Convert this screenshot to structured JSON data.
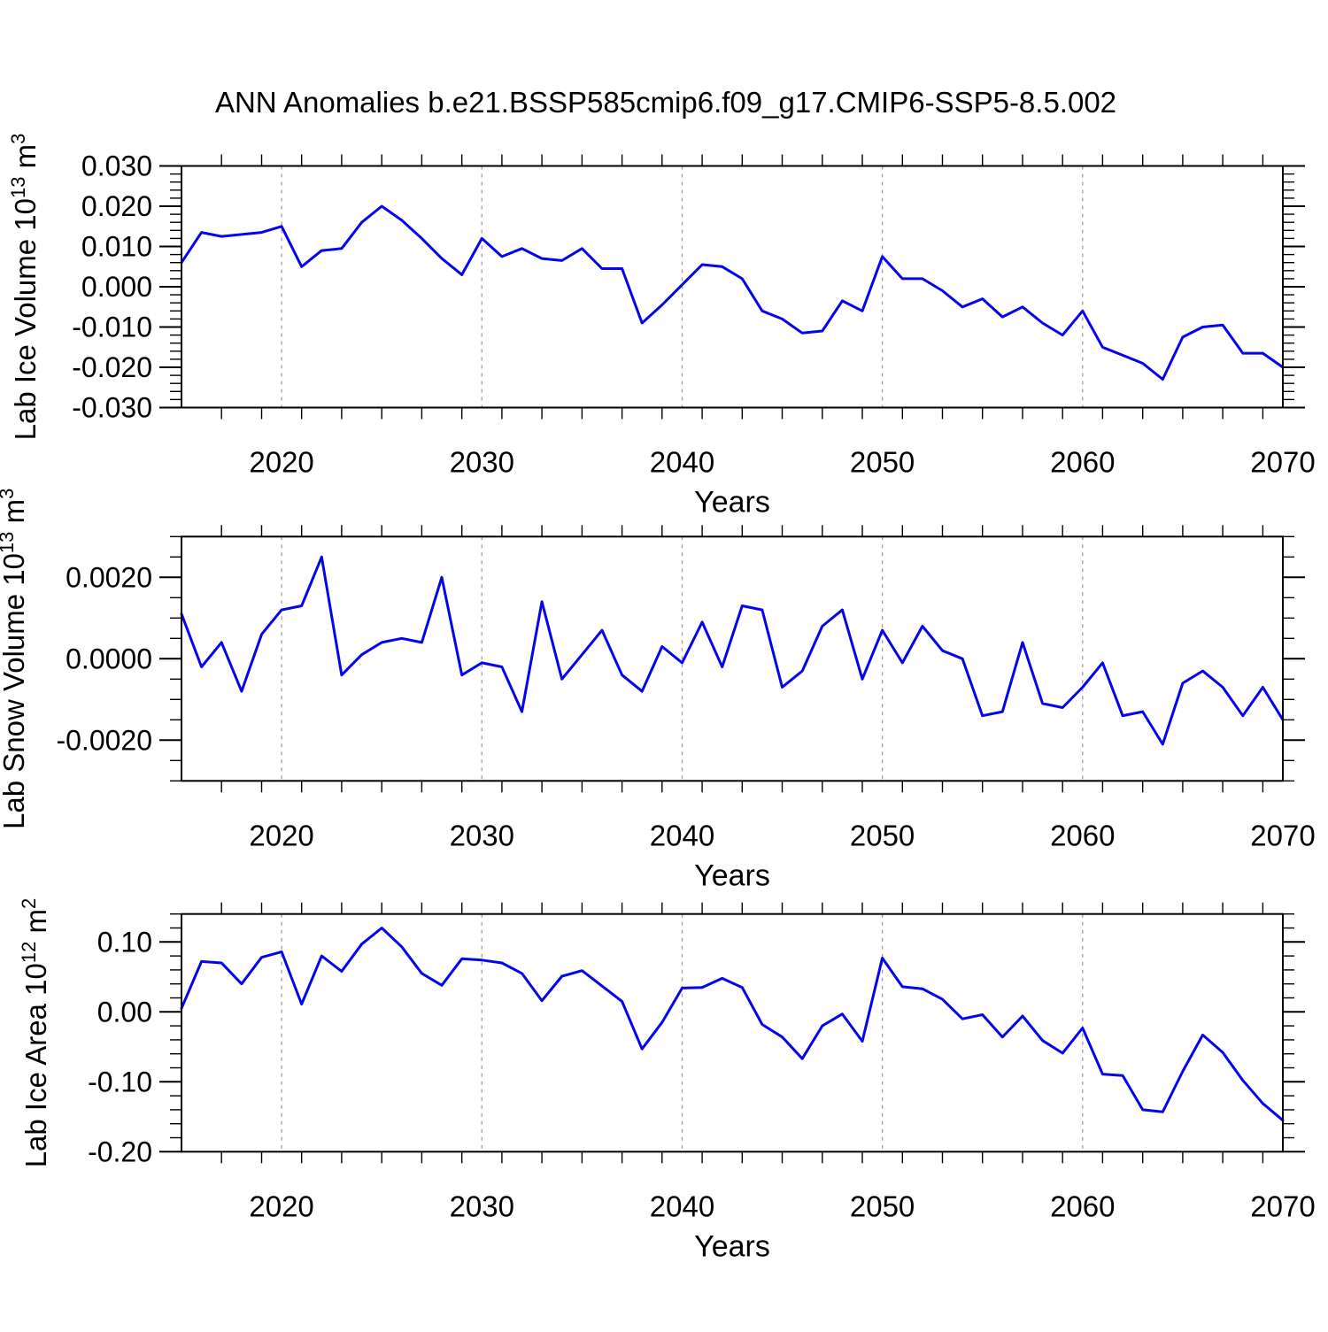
{
  "title": "ANN Anomalies b.e21.BSSP585cmip6.f09_g17.CMIP6-SSP5-8.5.002",
  "style": {
    "line_color": "#0404ee",
    "axis_color": "#000000",
    "grid_color": "#a0a0a0",
    "background": "#ffffff"
  },
  "x_axis": {
    "label": "Years",
    "range": [
      2015,
      2070
    ],
    "major_ticks": [
      2020,
      2030,
      2040,
      2050,
      2060,
      2070
    ],
    "minor_step": 2,
    "gridlines": [
      2020,
      2030,
      2040,
      2050,
      2060
    ]
  },
  "years": [
    2015,
    2016,
    2017,
    2018,
    2019,
    2020,
    2021,
    2022,
    2023,
    2024,
    2025,
    2026,
    2027,
    2028,
    2029,
    2030,
    2031,
    2032,
    2033,
    2034,
    2035,
    2036,
    2037,
    2038,
    2039,
    2040,
    2041,
    2042,
    2043,
    2044,
    2045,
    2046,
    2047,
    2048,
    2049,
    2050,
    2051,
    2052,
    2053,
    2054,
    2055,
    2056,
    2057,
    2058,
    2059,
    2060,
    2061,
    2062,
    2063,
    2064,
    2065,
    2066,
    2067,
    2068,
    2069,
    2070
  ],
  "chart_data": [
    {
      "type": "line",
      "name": "lab-ice-volume",
      "ylabel": "Lab Ice Volume 10^13 m^3",
      "ylabel_parts": {
        "pre": "Lab Ice Volume 10",
        "sup1": "13",
        "mid": " m",
        "sup2": "3"
      },
      "ylim": [
        -0.03,
        0.03
      ],
      "y_major": [
        0.03,
        0.02,
        0.01,
        0,
        -0.01,
        -0.02,
        -0.03
      ],
      "y_minor_step": 0.002,
      "y_decimals": 3,
      "values": [
        0.006,
        0.0135,
        0.0125,
        0.013,
        0.0135,
        0.015,
        0.005,
        0.009,
        0.0095,
        0.016,
        0.02,
        0.0165,
        0.012,
        0.007,
        0.003,
        0.012,
        0.0075,
        0.0095,
        0.007,
        0.0065,
        0.0095,
        0.0045,
        0.0045,
        -0.009,
        -0.0045,
        0.0005,
        0.0055,
        0.005,
        0.002,
        -0.006,
        -0.008,
        -0.0115,
        -0.011,
        -0.0035,
        -0.006,
        0.0075,
        0.002,
        0.002,
        -0.001,
        -0.005,
        -0.003,
        -0.0075,
        -0.005,
        -0.009,
        -0.012,
        -0.006,
        -0.015,
        -0.017,
        -0.019,
        -0.023,
        -0.0125,
        -0.01,
        -0.0095,
        -0.0165,
        -0.0165,
        -0.02
      ]
    },
    {
      "type": "line",
      "name": "lab-snow-volume",
      "ylabel": "Lab Snow Volume 10^13 m^3",
      "ylabel_parts": {
        "pre": "Lab Snow Volume 10",
        "sup1": "13",
        "mid": " m",
        "sup2": "3"
      },
      "ylim": [
        -0.003,
        0.003
      ],
      "y_major": [
        0.002,
        0,
        -0.002
      ],
      "y_minor_step": 0.0005,
      "y_decimals": 4,
      "values": [
        0.0011,
        -0.0002,
        0.0004,
        -0.0008,
        0.0006,
        0.0012,
        0.0013,
        0.0025,
        -0.0004,
        0.0001,
        0.0004,
        0.0005,
        0.0004,
        0.002,
        -0.0004,
        -0.0001,
        -0.0002,
        -0.0013,
        0.0014,
        -0.0005,
        0.0001,
        0.0007,
        -0.0004,
        -0.0008,
        0.0003,
        -0.0001,
        0.0009,
        -0.0002,
        0.0013,
        0.0012,
        -0.0007,
        -0.0003,
        0.0008,
        0.0012,
        -0.0005,
        0.0007,
        -0.0001,
        0.0008,
        0.0002,
        0,
        -0.0014,
        -0.0013,
        0.0004,
        -0.0011,
        -0.0012,
        -0.0007,
        -0.0001,
        -0.0014,
        -0.0013,
        -0.0021,
        -0.0006,
        -0.0003,
        -0.0007,
        -0.0014,
        -0.0007,
        -0.0015
      ]
    },
    {
      "type": "line",
      "name": "lab-ice-area",
      "ylabel": "Lab Ice Area 10^12 m^2",
      "ylabel_parts": {
        "pre": "Lab Ice Area 10",
        "sup1": "12",
        "mid": " m",
        "sup2": "2"
      },
      "ylim": [
        -0.2,
        0.14
      ],
      "y_major": [
        0.1,
        0,
        -0.1,
        -0.2
      ],
      "y_minor_step": 0.02,
      "y_decimals": 2,
      "values": [
        0.005,
        0.072,
        0.07,
        0.04,
        0.078,
        0.086,
        0.011,
        0.08,
        0.058,
        0.097,
        0.12,
        0.093,
        0.055,
        0.038,
        0.076,
        0.074,
        0.07,
        0.055,
        0.016,
        0.051,
        0.059,
        0.037,
        0.015,
        -0.053,
        -0.015,
        0.034,
        0.035,
        0.048,
        0.035,
        -0.018,
        -0.036,
        -0.067,
        -0.02,
        -0.003,
        -0.042,
        0.077,
        0.036,
        0.033,
        0.018,
        -0.01,
        -0.004,
        -0.036,
        -0.006,
        -0.041,
        -0.059,
        -0.023,
        -0.089,
        -0.091,
        -0.14,
        -0.143,
        -0.085,
        -0.033,
        -0.058,
        -0.098,
        -0.131,
        -0.155
      ]
    }
  ]
}
